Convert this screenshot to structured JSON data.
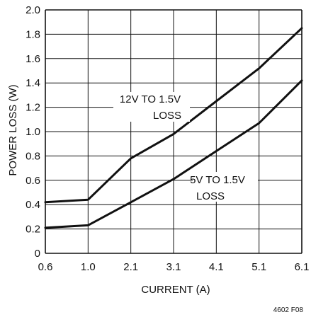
{
  "chart_data": {
    "type": "line",
    "x": [
      0.6,
      1.0,
      2.1,
      3.1,
      4.1,
      5.1,
      6.1
    ],
    "x_tick_labels": [
      "0.6",
      "1.0",
      "2.1",
      "3.1",
      "4.1",
      "5.1",
      "6.1"
    ],
    "y_ticks": [
      0,
      0.2,
      0.4,
      0.6,
      0.8,
      1.0,
      1.2,
      1.4,
      1.6,
      1.8,
      2.0
    ],
    "y_tick_labels": [
      "0",
      "0.2",
      "0.4",
      "0.6",
      "0.8",
      "1.0",
      "1.2",
      "1.4",
      "1.6",
      "1.8",
      "2.0"
    ],
    "xlabel": "CURRENT (A)",
    "ylabel": "POWER LOSS (W)",
    "ylim": [
      0,
      2.0
    ],
    "grid": true,
    "series": [
      {
        "name": "12V TO 1.5V LOSS",
        "values": [
          0.42,
          0.44,
          0.78,
          0.98,
          1.25,
          1.52,
          1.85
        ],
        "color": "#111111"
      },
      {
        "name": "5V TO 1.5V LOSS",
        "values": [
          0.21,
          0.23,
          0.42,
          0.61,
          0.84,
          1.07,
          1.42
        ],
        "color": "#111111"
      }
    ],
    "annotations": [
      {
        "line1": "12V TO 1.5V",
        "line2": "LOSS"
      },
      {
        "line1": "5V TO 1.5V",
        "line2": "LOSS"
      }
    ],
    "figure_id": "4602 F08"
  }
}
